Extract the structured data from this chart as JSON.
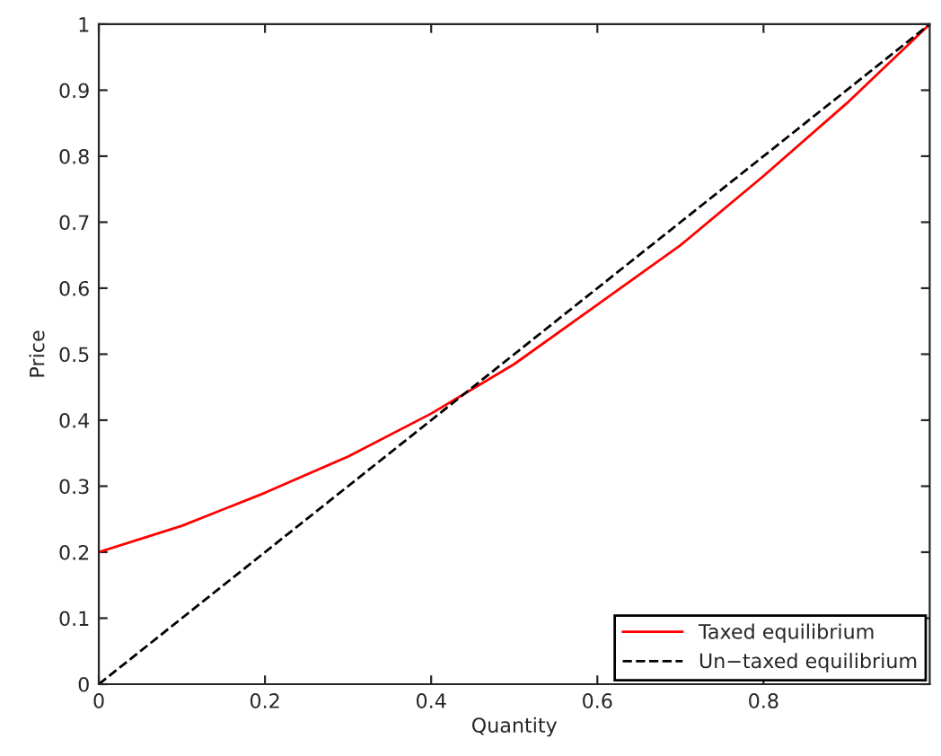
{
  "chart_data": {
    "type": "line",
    "xlabel": "Quantity",
    "ylabel": "Price",
    "xlim": [
      0,
      1
    ],
    "ylim": [
      0,
      1
    ],
    "xticks": [
      0,
      0.2,
      0.4,
      0.6,
      0.8
    ],
    "yticks": [
      0,
      0.1,
      0.2,
      0.3,
      0.4,
      0.5,
      0.6,
      0.7,
      0.8,
      0.9,
      1
    ],
    "legend": "bottom right",
    "grid": false,
    "series": [
      {
        "name": "Taxed equilibrium",
        "color": "#ff0000",
        "line_style": "solid",
        "x": [
          0,
          0.1,
          0.2,
          0.3,
          0.4,
          0.5,
          0.6,
          0.7,
          0.8,
          0.9,
          1
        ],
        "values": [
          0.2,
          0.24,
          0.29,
          0.345,
          0.41,
          0.485,
          0.575,
          0.665,
          0.77,
          0.88,
          1.0
        ]
      },
      {
        "name": "Un−taxed equilibrium",
        "color": "#000000",
        "line_style": "dashed",
        "x": [
          0,
          1
        ],
        "values": [
          0,
          1
        ]
      }
    ]
  }
}
